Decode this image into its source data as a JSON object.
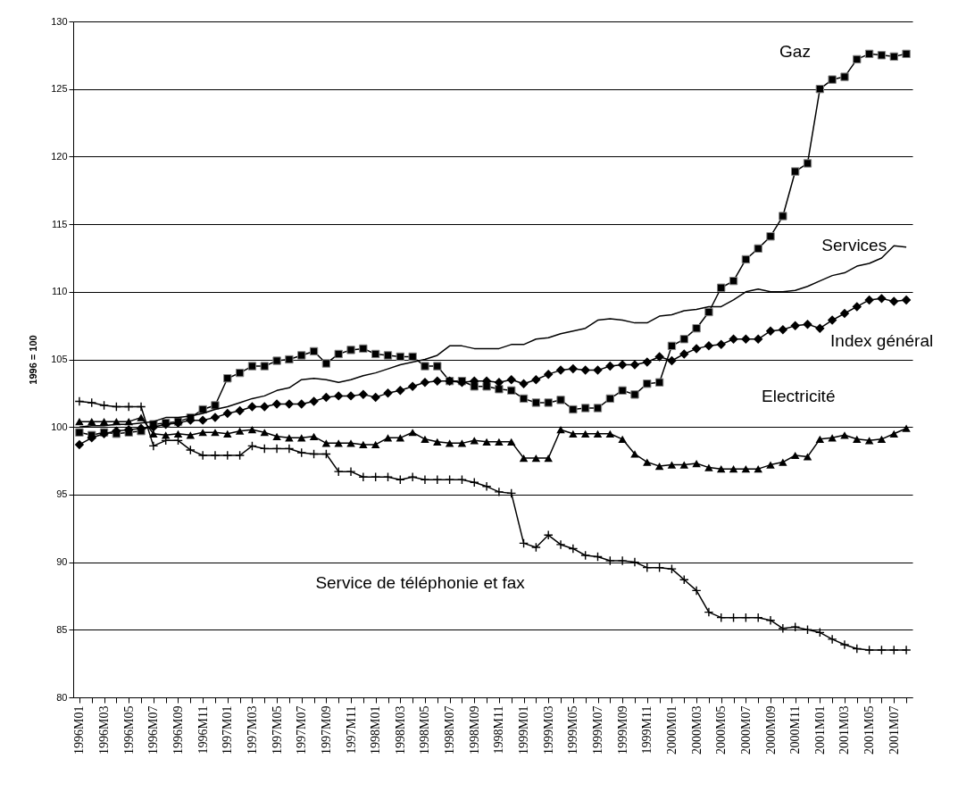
{
  "chart_data": {
    "type": "line",
    "ylabel": "1996 = 100",
    "grid": "y",
    "legend": false,
    "categories": [
      "1996M01",
      null,
      "1996M03",
      null,
      "1996M05",
      null,
      "1996M07",
      null,
      "1996M09",
      null,
      "1996M11",
      null,
      "1997M01",
      null,
      "1997M03",
      null,
      "1997M05",
      null,
      "1997M07",
      null,
      "1997M09",
      null,
      "1997M11",
      null,
      "1998M01",
      null,
      "1998M03",
      null,
      "1998M05",
      null,
      "1998M07",
      null,
      "1998M09",
      null,
      "1998M11",
      null,
      "1999M01",
      null,
      "1999M03",
      null,
      "1999M05",
      null,
      "1999M07",
      null,
      "1999M09",
      null,
      "1999M11",
      null,
      "2000M01",
      null,
      "2000M03",
      null,
      "2000M05",
      null,
      "2000M07",
      null,
      "2000M09",
      null,
      "2000M11",
      null,
      "2001M01",
      null,
      "2001M03",
      null,
      "2001M05",
      null,
      "2001M07",
      null
    ],
    "ylim": [
      80,
      130
    ],
    "yticks": [
      80,
      85,
      90,
      95,
      100,
      105,
      110,
      115,
      120,
      125,
      130
    ],
    "series": [
      {
        "name": "Gaz",
        "color": "#000000",
        "marker": "square",
        "values": [
          99.6,
          99.4,
          99.6,
          99.5,
          99.6,
          99.7,
          100.2,
          100.3,
          100.4,
          100.7,
          101.3,
          101.6,
          103.6,
          104.0,
          104.5,
          104.5,
          104.9,
          105.0,
          105.3,
          105.6,
          104.7,
          105.4,
          105.7,
          105.8,
          105.4,
          105.3,
          105.2,
          105.2,
          104.5,
          104.5,
          103.4,
          103.4,
          103.0,
          103.0,
          102.8,
          102.7,
          102.1,
          101.8,
          101.8,
          102.0,
          101.3,
          101.4,
          101.4,
          102.1,
          102.7,
          102.4,
          103.2,
          103.3,
          106.0,
          106.5,
          107.3,
          108.5,
          110.3,
          110.8,
          112.4,
          113.2,
          114.1,
          115.6,
          118.9,
          119.5,
          125.0,
          125.7,
          125.9,
          127.2,
          127.6,
          127.5,
          127.4,
          127.6
        ]
      },
      {
        "name": "Services",
        "color": "#000000",
        "marker": "none",
        "values": [
          100.0,
          100.1,
          100.1,
          100.2,
          100.2,
          100.3,
          100.4,
          100.7,
          100.7,
          100.8,
          101.0,
          101.3,
          101.5,
          101.8,
          102.1,
          102.3,
          102.7,
          102.9,
          103.5,
          103.6,
          103.5,
          103.3,
          103.5,
          103.8,
          104.0,
          104.3,
          104.6,
          104.8,
          105.0,
          105.3,
          106.0,
          106.0,
          105.8,
          105.8,
          105.8,
          106.1,
          106.1,
          106.5,
          106.6,
          106.9,
          107.1,
          107.3,
          107.9,
          108.0,
          107.9,
          107.7,
          107.7,
          108.2,
          108.3,
          108.6,
          108.7,
          108.9,
          108.9,
          109.4,
          110.0,
          110.2,
          110.0,
          110.0,
          110.1,
          110.4,
          110.8,
          111.2,
          111.4,
          111.9,
          112.1,
          112.5,
          113.4,
          113.3
        ]
      },
      {
        "name": "Index général",
        "color": "#000000",
        "marker": "diamond",
        "values": [
          98.7,
          99.2,
          99.5,
          99.7,
          99.8,
          99.9,
          100.0,
          100.2,
          100.3,
          100.5,
          100.5,
          100.7,
          101.0,
          101.2,
          101.5,
          101.5,
          101.7,
          101.7,
          101.7,
          101.9,
          102.2,
          102.3,
          102.3,
          102.4,
          102.2,
          102.5,
          102.7,
          103.0,
          103.3,
          103.4,
          103.4,
          103.3,
          103.4,
          103.4,
          103.3,
          103.5,
          103.2,
          103.5,
          103.9,
          104.2,
          104.3,
          104.2,
          104.2,
          104.5,
          104.6,
          104.6,
          104.8,
          105.2,
          104.9,
          105.4,
          105.8,
          106.0,
          106.1,
          106.5,
          106.5,
          106.5,
          107.1,
          107.2,
          107.5,
          107.6,
          107.3,
          107.9,
          108.4,
          108.9,
          109.4,
          109.5,
          109.3,
          109.4
        ]
      },
      {
        "name": "Electricité",
        "color": "#000000",
        "marker": "triangle",
        "values": [
          100.4,
          100.4,
          100.4,
          100.4,
          100.4,
          100.7,
          99.5,
          99.4,
          99.5,
          99.4,
          99.6,
          99.6,
          99.5,
          99.7,
          99.8,
          99.6,
          99.3,
          99.2,
          99.2,
          99.3,
          98.8,
          98.8,
          98.8,
          98.7,
          98.7,
          99.2,
          99.2,
          99.6,
          99.1,
          98.9,
          98.8,
          98.8,
          99.0,
          98.9,
          98.9,
          98.9,
          97.7,
          97.7,
          97.7,
          99.8,
          99.5,
          99.5,
          99.5,
          99.5,
          99.1,
          98.0,
          97.4,
          97.1,
          97.2,
          97.2,
          97.3,
          97.0,
          96.9,
          96.9,
          96.9,
          96.9,
          97.2,
          97.4,
          97.9,
          97.8,
          99.1,
          99.2,
          99.4,
          99.1,
          99.0,
          99.1,
          99.5,
          99.9
        ]
      },
      {
        "name": "Service de téléphonie et fax",
        "color": "#000000",
        "marker": "cross",
        "values": [
          101.9,
          101.8,
          101.6,
          101.5,
          101.5,
          101.5,
          98.6,
          99.0,
          99.0,
          98.3,
          97.9,
          97.9,
          97.9,
          97.9,
          98.6,
          98.4,
          98.4,
          98.4,
          98.1,
          98.0,
          98.0,
          96.7,
          96.7,
          96.3,
          96.3,
          96.3,
          96.1,
          96.3,
          96.1,
          96.1,
          96.1,
          96.1,
          95.9,
          95.6,
          95.2,
          95.1,
          91.4,
          91.1,
          92.0,
          91.3,
          91.0,
          90.5,
          90.4,
          90.1,
          90.1,
          90.0,
          89.6,
          89.6,
          89.5,
          88.7,
          87.9,
          86.3,
          85.9,
          85.9,
          85.9,
          85.9,
          85.7,
          85.1,
          85.2,
          85.0,
          84.8,
          84.3,
          83.9,
          83.6,
          83.5,
          83.5,
          83.5,
          83.5
        ]
      }
    ]
  }
}
